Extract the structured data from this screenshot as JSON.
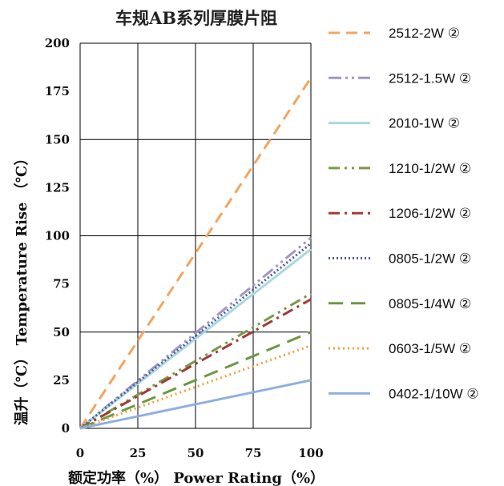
{
  "chart_data": {
    "type": "line",
    "title": "车规AB系列厚膜片阻",
    "xlabel": "额定功率（%） Power Rating（%）",
    "ylabel": "温升（℃） Temperature Rise （℃）",
    "xlim": [
      0,
      100
    ],
    "ylim": [
      0,
      200
    ],
    "xticks": [
      "0",
      "25",
      "50",
      "75",
      "100"
    ],
    "yticks": [
      "0",
      "25",
      "50",
      "75",
      "100",
      "125",
      "150",
      "175",
      "200"
    ],
    "grid": true,
    "legend_position": "right",
    "series": [
      {
        "name": "2512-2W ②",
        "color": "#f4a460",
        "dash": "14 8",
        "x": [
          0,
          100
        ],
        "y": [
          0,
          182
        ]
      },
      {
        "name": "2512-1.5W ②",
        "color": "#a694c4",
        "dash": "16 5 3 5 3 5",
        "x": [
          0,
          100
        ],
        "y": [
          0,
          99
        ]
      },
      {
        "name": "2010-1W ②",
        "color": "#a8d8e0",
        "dash": "",
        "x": [
          0,
          100
        ],
        "y": [
          0,
          93
        ]
      },
      {
        "name": "1210-1/2W ②",
        "color": "#7a9a45",
        "dash": "14 6 3 6 3 6",
        "x": [
          0,
          100
        ],
        "y": [
          0,
          70
        ]
      },
      {
        "name": "1206-1/2W ②",
        "color": "#a33a3a",
        "dash": "14 6 3 6",
        "x": [
          0,
          100
        ],
        "y": [
          0,
          67
        ]
      },
      {
        "name": "0805-1/2W ②",
        "color": "#4a5f9a",
        "dash": "2 3",
        "x": [
          0,
          100
        ],
        "y": [
          0,
          96
        ]
      },
      {
        "name": "0805-1/4W ②",
        "color": "#6a9a40",
        "dash": "18 10",
        "x": [
          0,
          100
        ],
        "y": [
          0,
          50
        ]
      },
      {
        "name": "0603-1/5W ②",
        "color": "#f0a040",
        "dash": "2 4",
        "x": [
          0,
          100
        ],
        "y": [
          0,
          43
        ]
      },
      {
        "name": "0402-1/10W ②",
        "color": "#8fb0e0",
        "dash": "",
        "x": [
          0,
          100
        ],
        "y": [
          0,
          25
        ]
      }
    ]
  }
}
